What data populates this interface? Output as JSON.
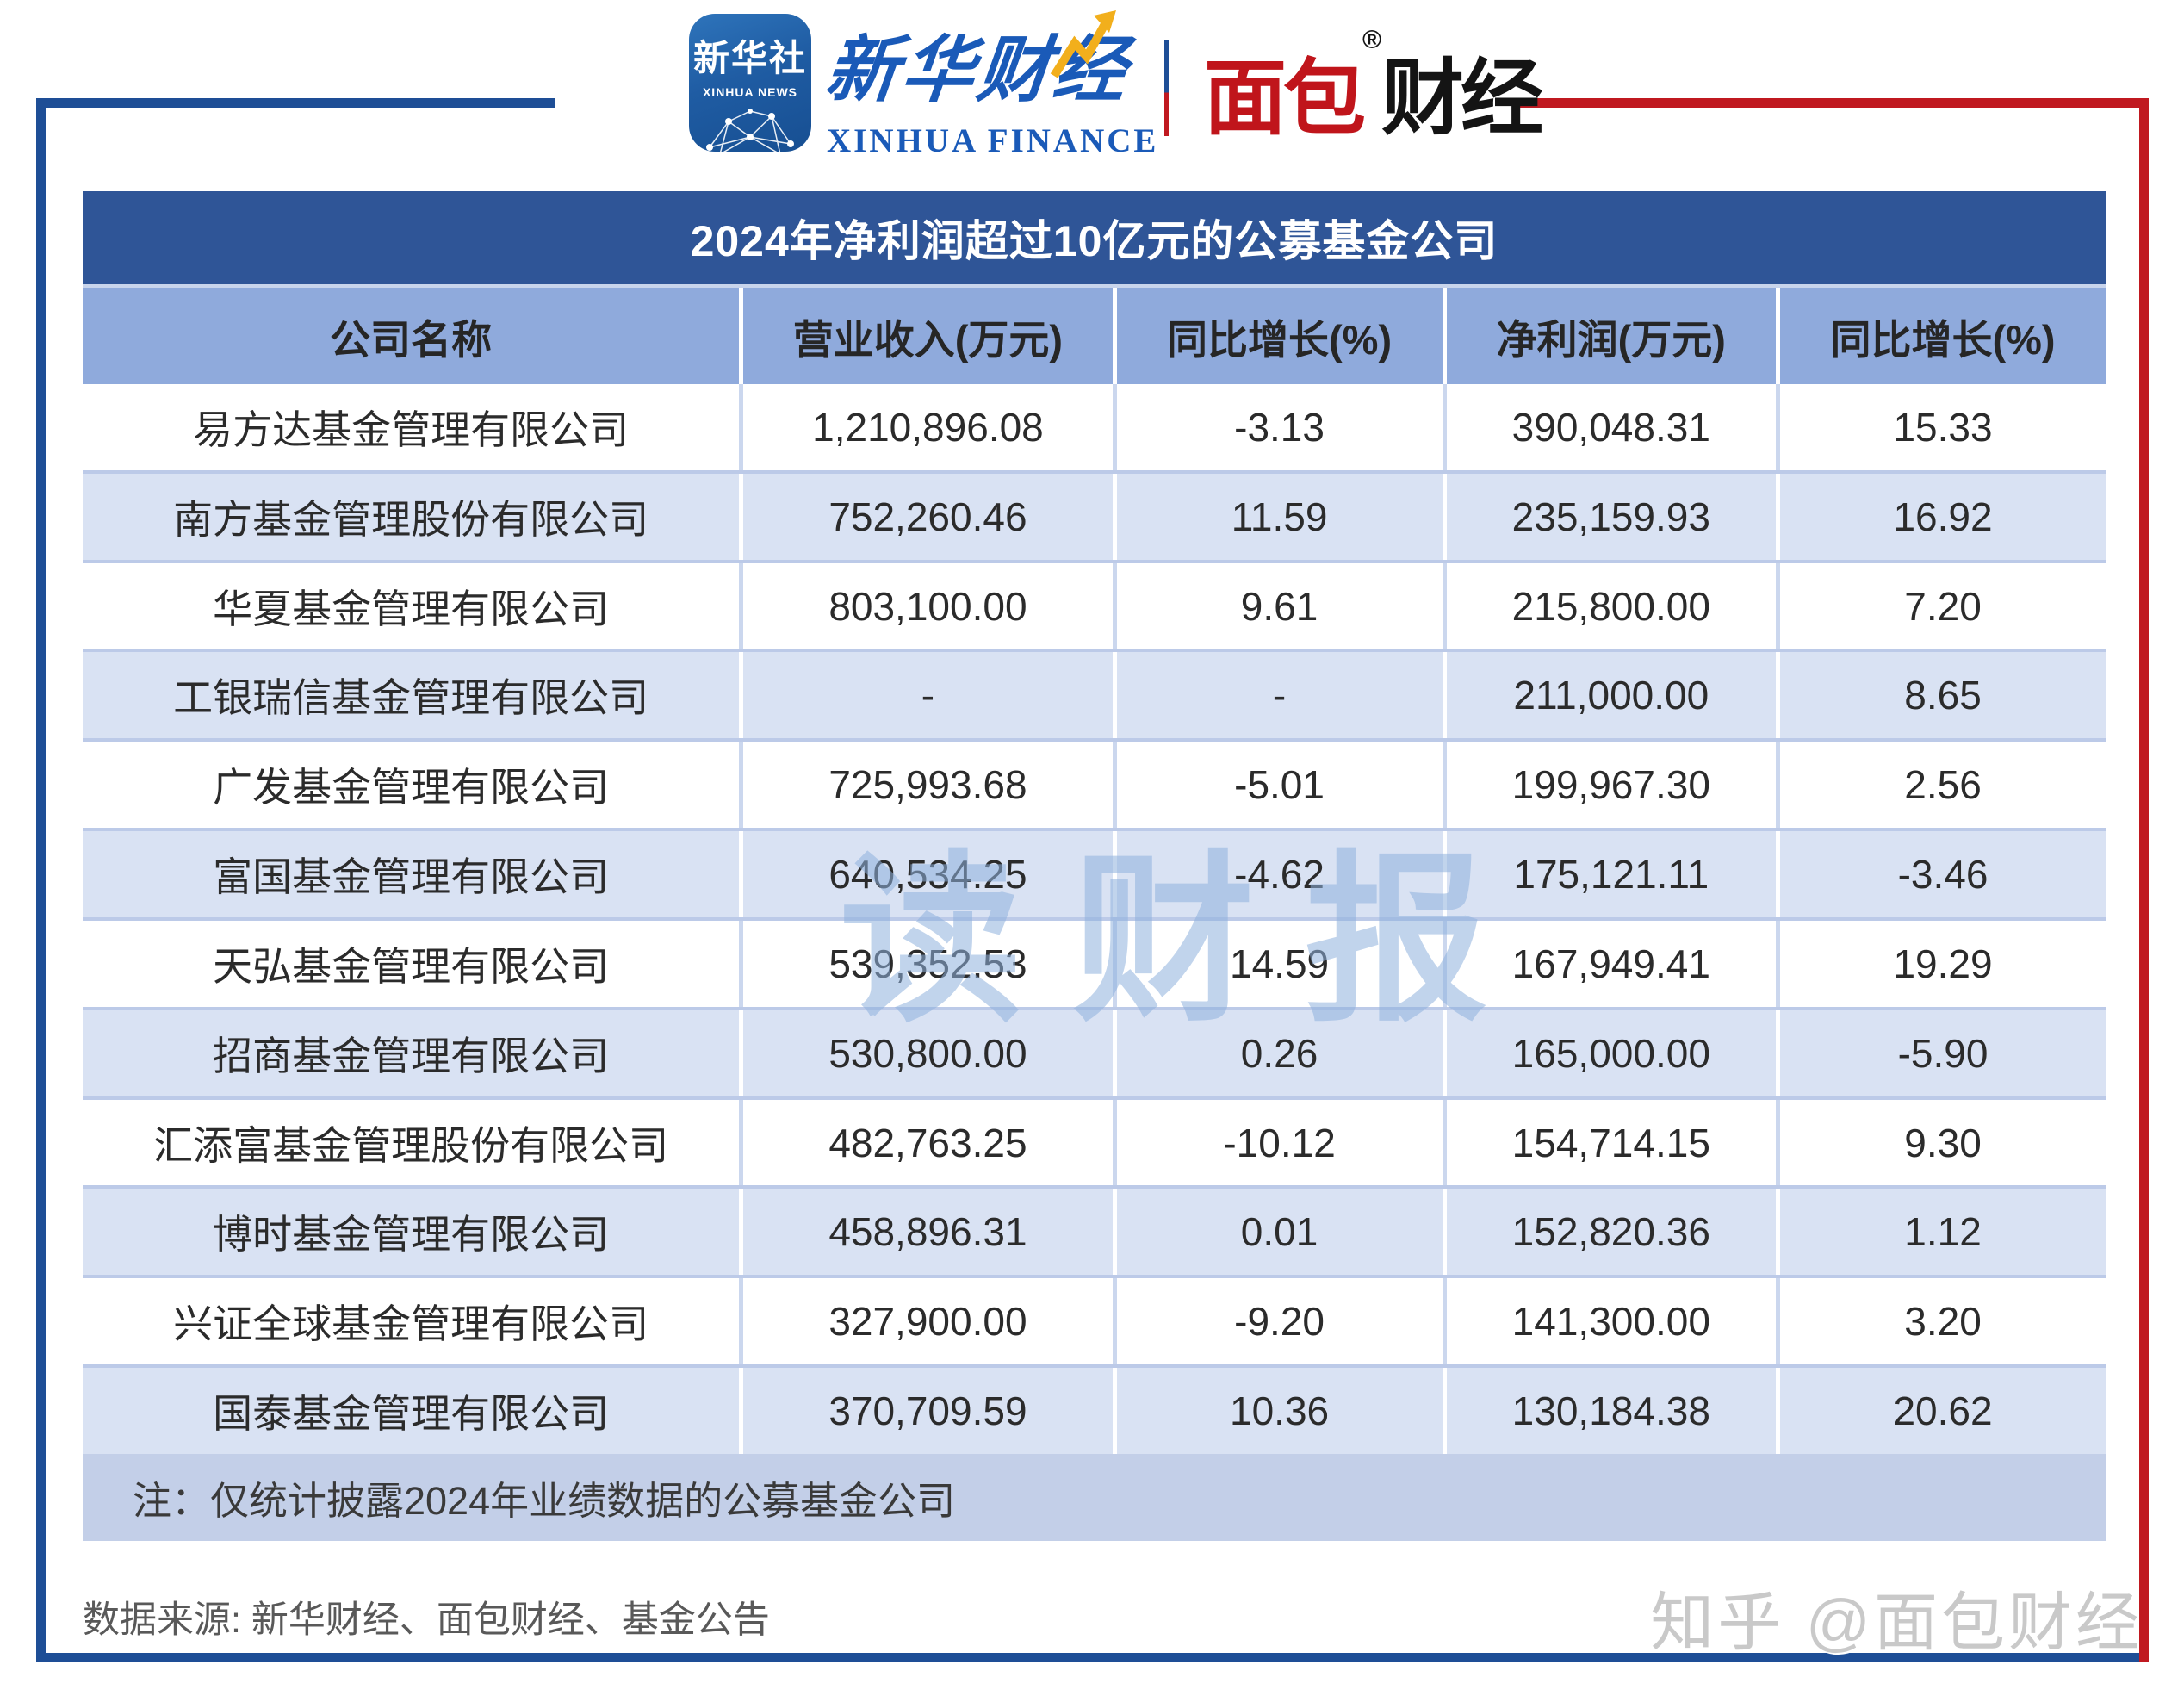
{
  "header": {
    "xinhua_news_icon": {
      "line1": "新华社",
      "line2": "XINHUA NEWS"
    },
    "xinhua_finance": {
      "script": "新华财经",
      "caption": "XINHUA FINANCE"
    },
    "bread_finance": {
      "part1": "面包",
      "part2": "财经",
      "reg_mark": "®"
    }
  },
  "table": {
    "title": "2024年净利润超过10亿元的公募基金公司",
    "columns": [
      "公司名称",
      "营业收入(万元)",
      "同比增长(%)",
      "净利润(万元)",
      "同比增长(%)"
    ],
    "rows": [
      [
        "易方达基金管理有限公司",
        "1,210,896.08",
        "-3.13",
        "390,048.31",
        "15.33"
      ],
      [
        "南方基金管理股份有限公司",
        "752,260.46",
        "11.59",
        "235,159.93",
        "16.92"
      ],
      [
        "华夏基金管理有限公司",
        "803,100.00",
        "9.61",
        "215,800.00",
        "7.20"
      ],
      [
        "工银瑞信基金管理有限公司",
        "-",
        "-",
        "211,000.00",
        "8.65"
      ],
      [
        "广发基金管理有限公司",
        "725,993.68",
        "-5.01",
        "199,967.30",
        "2.56"
      ],
      [
        "富国基金管理有限公司",
        "640,534.25",
        "-4.62",
        "175,121.11",
        "-3.46"
      ],
      [
        "天弘基金管理有限公司",
        "539,352.53",
        "14.59",
        "167,949.41",
        "19.29"
      ],
      [
        "招商基金管理有限公司",
        "530,800.00",
        "0.26",
        "165,000.00",
        "-5.90"
      ],
      [
        "汇添富基金管理股份有限公司",
        "482,763.25",
        "-10.12",
        "154,714.15",
        "9.30"
      ],
      [
        "博时基金管理有限公司",
        "458,896.31",
        "0.01",
        "152,820.36",
        "1.12"
      ],
      [
        "兴证全球基金管理有限公司",
        "327,900.00",
        "-9.20",
        "141,300.00",
        "3.20"
      ],
      [
        "国泰基金管理有限公司",
        "370,709.59",
        "10.36",
        "130,184.38",
        "20.62"
      ]
    ],
    "note": "注：仅统计披露2024年业绩数据的公募基金公司"
  },
  "watermark_center": "读财报",
  "footer": {
    "source": "数据来源: 新华财经、面包财经、基金公告",
    "watermark": "知乎 @面包财经"
  },
  "colors": {
    "title_bar": "#2F5597",
    "header_row": "#8FAADC",
    "row_alt": "#D9E2F3",
    "note_row": "#C3CFE8",
    "frame_blue": "#1E4E96",
    "frame_red": "#C01920",
    "center_watermark": "#8FB2DE",
    "brand_blue": "#1A5AB8",
    "brand_red": "#C0151B"
  },
  "chart_data": {
    "type": "table",
    "title": "2024年净利润超过10亿元的公募基金公司",
    "columns": [
      "公司名称",
      "营业收入(万元)",
      "同比增长(%)",
      "净利润(万元)",
      "同比增长(%)"
    ],
    "rows": [
      [
        "易方达基金管理有限公司",
        1210896.08,
        -3.13,
        390048.31,
        15.33
      ],
      [
        "南方基金管理股份有限公司",
        752260.46,
        11.59,
        235159.93,
        16.92
      ],
      [
        "华夏基金管理有限公司",
        803100.0,
        9.61,
        215800.0,
        7.2
      ],
      [
        "工银瑞信基金管理有限公司",
        null,
        null,
        211000.0,
        8.65
      ],
      [
        "广发基金管理有限公司",
        725993.68,
        -5.01,
        199967.3,
        2.56
      ],
      [
        "富国基金管理有限公司",
        640534.25,
        -4.62,
        175121.11,
        -3.46
      ],
      [
        "天弘基金管理有限公司",
        539352.53,
        14.59,
        167949.41,
        19.29
      ],
      [
        "招商基金管理有限公司",
        530800.0,
        0.26,
        165000.0,
        -5.9
      ],
      [
        "汇添富基金管理股份有限公司",
        482763.25,
        -10.12,
        154714.15,
        9.3
      ],
      [
        "博时基金管理有限公司",
        458896.31,
        0.01,
        152820.36,
        1.12
      ],
      [
        "兴证全球基金管理有限公司",
        327900.0,
        -9.2,
        141300.0,
        3.2
      ],
      [
        "国泰基金管理有限公司",
        370709.59,
        10.36,
        130184.38,
        20.62
      ]
    ],
    "note": "注：仅统计披露2024年业绩数据的公募基金公司",
    "source": "数据来源: 新华财经、面包财经、基金公告"
  }
}
